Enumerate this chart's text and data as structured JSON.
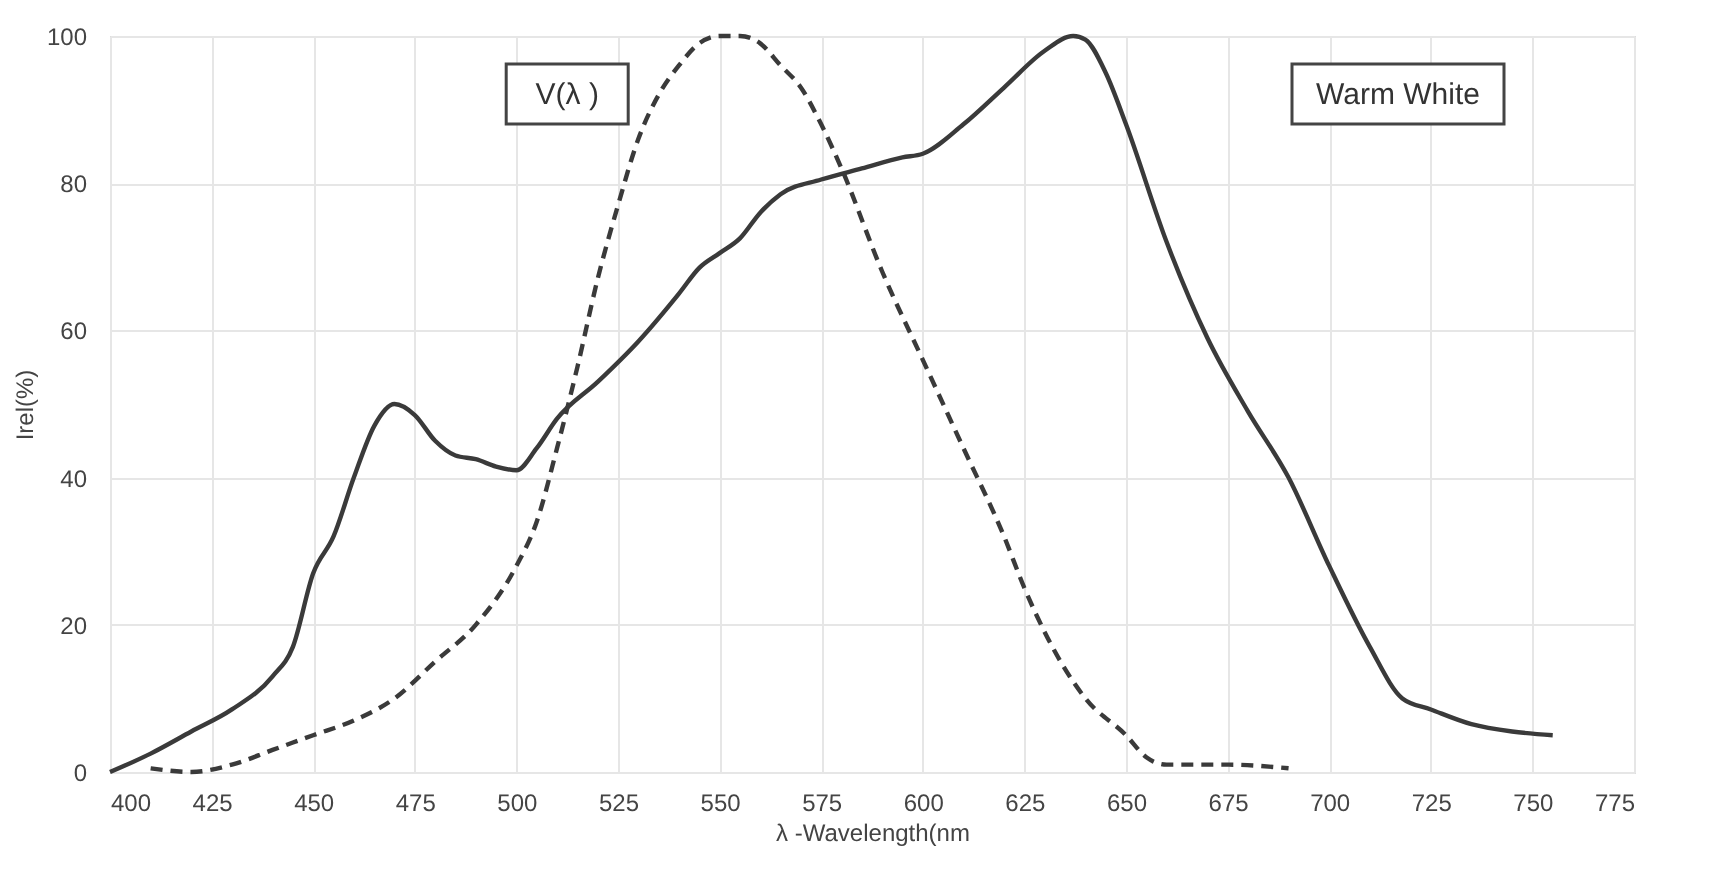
{
  "chart_data": {
    "type": "line",
    "xlabel": "λ -Wavelength(nm",
    "ylabel": "Irel(%)",
    "xlim": [
      400,
      775
    ],
    "xticks": [
      400,
      425,
      450,
      475,
      500,
      525,
      550,
      575,
      600,
      625,
      650,
      675,
      700,
      725,
      750,
      775
    ],
    "ylim": [
      0,
      100
    ],
    "yticks": [
      0,
      20,
      40,
      60,
      80,
      100
    ],
    "grid": true,
    "legend": false,
    "series": [
      {
        "name": "Warm White",
        "color": "#3a3a3a",
        "line_style": "solid",
        "x": [
          400,
          410,
          420,
          430,
          440,
          445,
          450,
          455,
          460,
          465,
          470,
          475,
          480,
          485,
          490,
          495,
          500,
          505,
          510,
          520,
          530,
          540,
          545,
          550,
          555,
          560,
          565,
          575,
          585,
          595,
          600,
          610,
          620,
          630,
          637,
          640,
          645,
          650,
          660,
          670,
          680,
          690,
          700,
          710,
          718,
          725,
          735,
          745,
          755
        ],
        "values": [
          0,
          2.5,
          5.5,
          8.5,
          13,
          17,
          27,
          32,
          40,
          47,
          50,
          48.5,
          45,
          43,
          42.5,
          41.5,
          41,
          44,
          48,
          53,
          58.5,
          65,
          68.5,
          70.5,
          72.5,
          76,
          78.5,
          80.5,
          82,
          83.5,
          84,
          88,
          93,
          98,
          100,
          99.5,
          95,
          88,
          72,
          59,
          49,
          40,
          28,
          17,
          10,
          8.5,
          6.5,
          5.5,
          5
        ]
      },
      {
        "name": "V(λ )",
        "color": "#3a3a3a",
        "line_style": "dashed",
        "x": [
          410,
          420,
          430,
          440,
          450,
          460,
          470,
          480,
          490,
          500,
          505,
          510,
          515,
          520,
          525,
          530,
          535,
          540,
          545,
          550,
          555,
          560,
          565,
          570,
          575,
          580,
          590,
          600,
          610,
          620,
          625,
          630,
          640,
          650,
          655,
          660,
          675,
          690
        ],
        "values": [
          0.5,
          0,
          1,
          3,
          5,
          7,
          10,
          15,
          20,
          28,
          34,
          44,
          55,
          67,
          77,
          86,
          92,
          96,
          99,
          100,
          100,
          99,
          96,
          93,
          88,
          82,
          68,
          56,
          44,
          32,
          25,
          19,
          10,
          5,
          2,
          1,
          1,
          0.5
        ]
      }
    ]
  }
}
